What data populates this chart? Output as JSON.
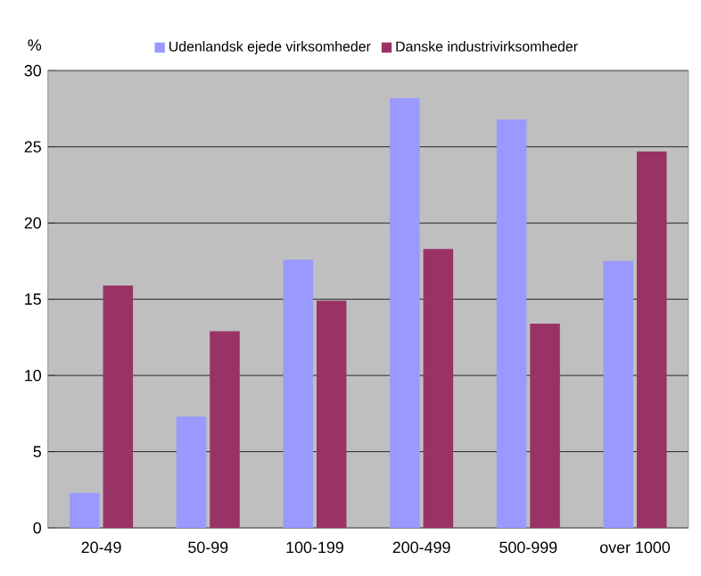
{
  "chart_data": {
    "type": "bar",
    "ylabel": "%",
    "categories": [
      "20-49",
      "50-99",
      "100-199",
      "200-499",
      "500-999",
      "over 1000"
    ],
    "series": [
      {
        "name": "Udenlandsk ejede virksomheder",
        "color": "#9999ff",
        "values": [
          2.3,
          7.3,
          17.6,
          28.2,
          26.8,
          17.5
        ]
      },
      {
        "name": "Danske industrivirksomheder",
        "color": "#993366",
        "values": [
          15.9,
          12.9,
          14.9,
          18.3,
          13.4,
          24.7
        ]
      }
    ],
    "ylim": [
      0,
      30
    ],
    "yticks": [
      0,
      5,
      10,
      15,
      20,
      25,
      30
    ],
    "grid": "y",
    "legend": "top"
  }
}
